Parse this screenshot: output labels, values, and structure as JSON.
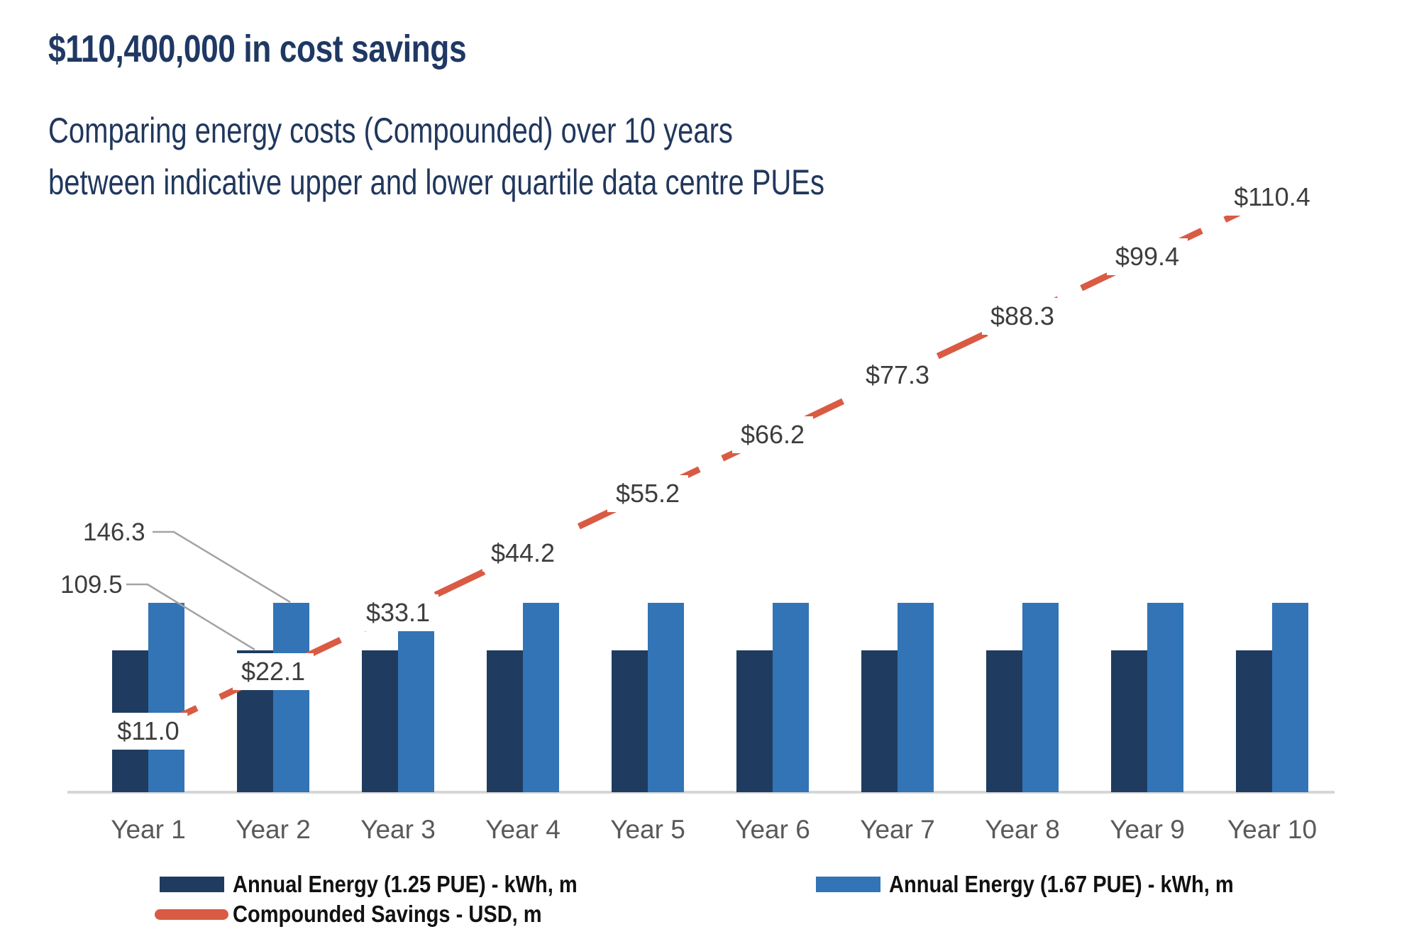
{
  "header": {
    "title": "$110,400,000 in cost savings",
    "subtitle_line1": "Comparing energy costs (Compounded) over 10 years",
    "subtitle_line2": "between indicative upper and lower quartile data centre PUEs",
    "accent_color": "#1F3864"
  },
  "chart_data": {
    "type": "bar",
    "subtype": "grouped bars with overlaid dashed line (secondary axis)",
    "categories": [
      "Year 1",
      "Year 2",
      "Year 3",
      "Year 4",
      "Year 5",
      "Year 6",
      "Year 7",
      "Year 8",
      "Year 9",
      "Year 10"
    ],
    "series": [
      {
        "name": "Annual Energy (1.25 PUE) - kWh, m",
        "type": "bar",
        "color": "#1F3C60",
        "values": [
          109.5,
          109.5,
          109.5,
          109.5,
          109.5,
          109.5,
          109.5,
          109.5,
          109.5,
          109.5
        ]
      },
      {
        "name": "Annual Energy (1.67 PUE) - kWh, m",
        "type": "bar",
        "color": "#3274B6",
        "values": [
          146.3,
          146.3,
          146.3,
          146.3,
          146.3,
          146.3,
          146.3,
          146.3,
          146.3,
          146.3
        ]
      },
      {
        "name": "Compounded Savings - USD, m",
        "type": "line",
        "style": "dashed",
        "color": "#D95B43",
        "values": [
          11.0,
          22.1,
          33.1,
          44.2,
          55.2,
          66.2,
          77.3,
          88.3,
          99.4,
          110.4
        ],
        "point_labels": [
          "$11.0",
          "$22.1",
          "$33.1",
          "$44.2",
          "$55.2",
          "$66.2",
          "$77.3",
          "$88.3",
          "$99.4",
          "$110.4"
        ]
      }
    ],
    "annotations": [
      {
        "text": "146.3",
        "points_to": "top of Year 2 bar, Annual Energy (1.67 PUE)"
      },
      {
        "text": "109.5",
        "points_to": "top of Year 2 bar, Annual Energy (1.25 PUE)"
      }
    ],
    "xlabel": "",
    "ylabel": "",
    "y_axis_visible": false,
    "gridlines": false,
    "legend_position": "bottom",
    "label_text_color": "#3D3D3D",
    "category_text_color": "#595959",
    "axis_line_color": "#D6D6D6",
    "leader_line_color": "#A3A3A3"
  }
}
